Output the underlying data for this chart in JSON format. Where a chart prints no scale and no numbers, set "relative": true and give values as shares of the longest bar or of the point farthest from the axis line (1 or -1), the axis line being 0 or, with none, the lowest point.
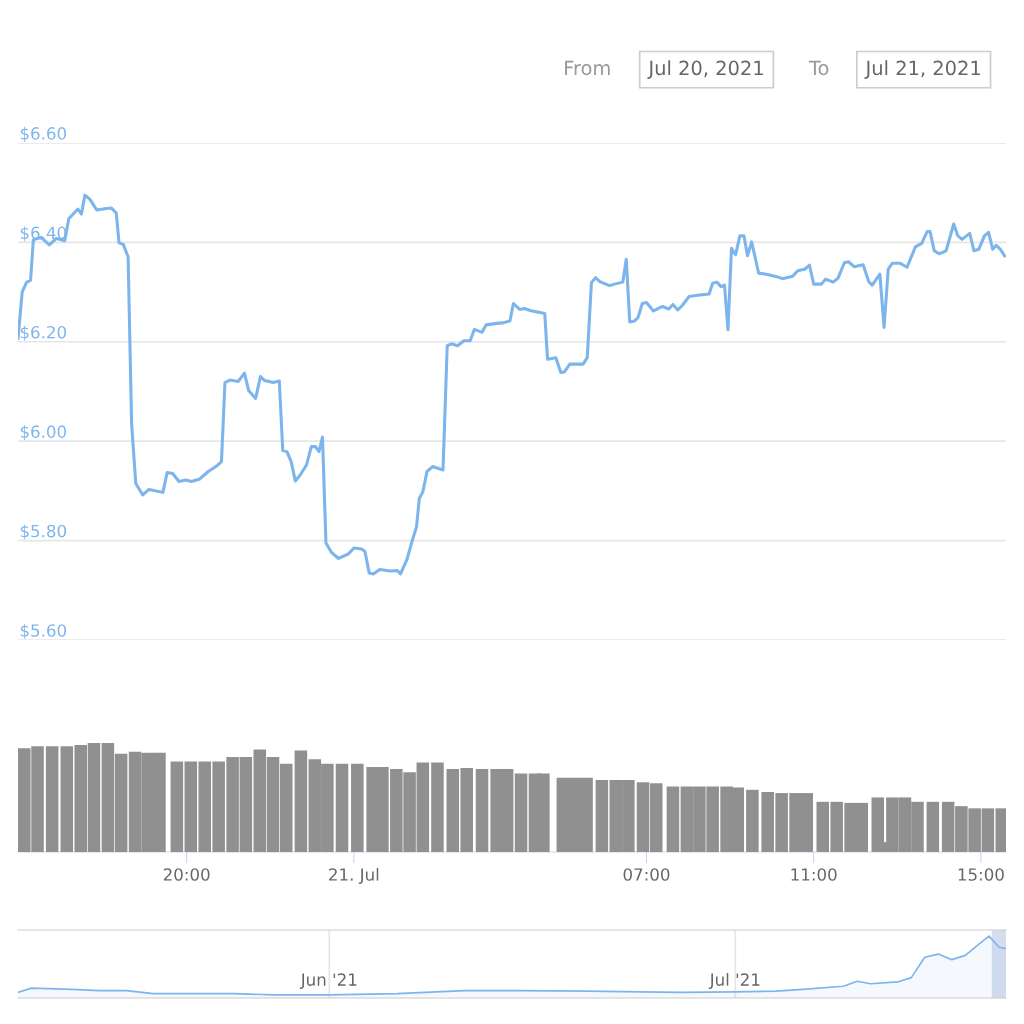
{
  "chart_data": [
    {
      "type": "line",
      "annotations": [
        "From",
        "Jul 20, 2021",
        "To",
        "Jul 21, 2021"
      ],
      "series": [
        {
          "color": "#7cb5ec",
          "x": [
            "2021-07-20T15:58",
            "2021-07-20T16:04",
            "2021-07-20T16:10",
            "2021-07-20T16:16",
            "2021-07-20T16:20",
            "2021-07-20T16:31",
            "2021-07-20T16:43",
            "2021-07-20T16:53",
            "2021-07-20T17:05",
            "2021-07-20T17:11",
            "2021-07-20T17:24",
            "2021-07-20T17:29",
            "2021-07-20T17:34",
            "2021-07-20T17:41",
            "2021-07-20T17:51",
            "2021-07-20T18:05",
            "2021-07-20T18:12",
            "2021-07-20T18:19",
            "2021-07-20T18:23",
            "2021-07-20T18:29",
            "2021-07-20T18:36",
            "2021-07-20T18:41",
            "2021-07-20T18:47",
            "2021-07-20T18:57",
            "2021-07-20T19:06",
            "2021-07-20T19:26",
            "2021-07-20T19:32",
            "2021-07-20T19:40",
            "2021-07-20T19:49",
            "2021-07-20T19:59",
            "2021-07-20T20:07",
            "2021-07-20T20:19",
            "2021-07-20T20:31",
            "2021-07-20T20:43",
            "2021-07-20T20:50",
            "2021-07-20T20:55",
            "2021-07-20T21:02",
            "2021-07-20T21:14",
            "2021-07-20T21:23",
            "2021-07-20T21:29",
            "2021-07-20T21:39",
            "2021-07-20T21:46",
            "2021-07-20T21:52",
            "2021-07-20T22:04",
            "2021-07-20T22:13",
            "2021-07-20T22:18",
            "2021-07-20T22:24",
            "2021-07-20T22:30",
            "2021-07-20T22:36",
            "2021-07-20T22:43",
            "2021-07-20T22:52",
            "2021-07-20T22:59",
            "2021-07-20T23:05",
            "2021-07-20T23:10",
            "2021-07-20T23:15",
            "2021-07-20T23:20",
            "2021-07-20T23:28",
            "2021-07-20T23:38",
            "2021-07-20T23:52",
            "2021-07-21T00:00",
            "2021-07-21T00:11",
            "2021-07-21T00:16",
            "2021-07-21T00:22",
            "2021-07-21T00:28",
            "2021-07-21T00:37",
            "2021-07-21T00:52",
            "2021-07-21T01:02",
            "2021-07-21T01:07",
            "2021-07-21T01:16",
            "2021-07-21T01:24",
            "2021-07-21T01:30",
            "2021-07-21T01:34",
            "2021-07-21T01:39",
            "2021-07-21T01:45",
            "2021-07-21T01:53",
            "2021-07-21T02:08",
            "2021-07-21T02:14",
            "2021-07-21T02:20",
            "2021-07-21T02:29",
            "2021-07-21T02:38",
            "2021-07-21T02:47",
            "2021-07-21T02:53",
            "2021-07-21T03:04",
            "2021-07-21T03:10",
            "2021-07-21T03:25",
            "2021-07-21T03:34",
            "2021-07-21T03:44",
            "2021-07-21T03:49",
            "2021-07-21T03:58",
            "2021-07-21T04:05",
            "2021-07-21T04:13",
            "2021-07-21T04:34",
            "2021-07-21T04:38",
            "2021-07-21T04:50",
            "2021-07-21T04:57",
            "2021-07-21T05:02",
            "2021-07-21T05:10",
            "2021-07-21T05:29",
            "2021-07-21T05:35",
            "2021-07-21T05:41",
            "2021-07-21T05:47",
            "2021-07-21T05:53",
            "2021-07-21T06:07",
            "2021-07-21T06:14",
            "2021-07-21T06:26",
            "2021-07-21T06:31",
            "2021-07-21T06:36",
            "2021-07-21T06:43",
            "2021-07-21T06:48",
            "2021-07-21T06:54",
            "2021-07-21T07:00",
            "2021-07-21T07:10",
            "2021-07-21T07:23",
            "2021-07-21T07:32",
            "2021-07-21T07:38",
            "2021-07-21T07:45",
            "2021-07-21T07:52",
            "2021-07-21T08:01",
            "2021-07-21T08:16",
            "2021-07-21T08:30",
            "2021-07-21T08:35",
            "2021-07-21T08:41",
            "2021-07-21T08:47",
            "2021-07-21T08:52",
            "2021-07-21T08:57",
            "2021-07-21T09:02",
            "2021-07-21T09:08",
            "2021-07-21T09:14",
            "2021-07-21T09:20",
            "2021-07-21T09:25",
            "2021-07-21T09:31",
            "2021-07-21T09:41",
            "2021-07-21T09:52",
            "2021-07-21T10:07",
            "2021-07-21T10:15",
            "2021-07-21T10:30",
            "2021-07-21T10:37",
            "2021-07-21T10:47",
            "2021-07-21T10:54",
            "2021-07-21T11:00",
            "2021-07-21T11:11",
            "2021-07-21T11:17",
            "2021-07-21T11:28",
            "2021-07-21T11:35",
            "2021-07-21T11:44",
            "2021-07-21T11:50",
            "2021-07-21T11:58",
            "2021-07-21T12:11",
            "2021-07-21T12:19",
            "2021-07-21T12:24",
            "2021-07-21T12:35",
            "2021-07-21T12:41",
            "2021-07-21T12:47",
            "2021-07-21T12:53",
            "2021-07-21T13:04",
            "2021-07-21T13:14",
            "2021-07-21T13:26",
            "2021-07-21T13:35",
            "2021-07-21T13:43",
            "2021-07-21T13:47",
            "2021-07-21T13:53",
            "2021-07-21T14:00",
            "2021-07-21T14:10",
            "2021-07-21T14:21",
            "2021-07-21T14:27",
            "2021-07-21T14:33",
            "2021-07-21T14:44",
            "2021-07-21T14:50",
            "2021-07-21T14:57",
            "2021-07-21T15:05",
            "2021-07-21T15:11",
            "2021-07-21T15:17",
            "2021-07-21T15:22",
            "2021-07-21T15:28",
            "2021-07-21T15:34"
          ],
          "values": [
            6.207,
            6.3,
            6.319,
            6.324,
            6.405,
            6.41,
            6.395,
            6.408,
            6.403,
            6.448,
            6.467,
            6.457,
            6.495,
            6.487,
            6.465,
            6.468,
            6.469,
            6.459,
            6.399,
            6.396,
            6.371,
            6.036,
            5.915,
            5.892,
            5.903,
            5.897,
            5.937,
            5.935,
            5.919,
            5.922,
            5.919,
            5.924,
            5.939,
            5.95,
            5.959,
            6.118,
            6.123,
            6.12,
            6.137,
            6.102,
            6.086,
            6.13,
            6.122,
            6.118,
            6.121,
            5.981,
            5.979,
            5.959,
            5.92,
            5.932,
            5.952,
            5.989,
            5.989,
            5.979,
            6.008,
            5.795,
            5.776,
            5.764,
            5.773,
            5.785,
            5.783,
            5.778,
            5.735,
            5.733,
            5.742,
            5.739,
            5.74,
            5.733,
            5.761,
            5.801,
            5.828,
            5.885,
            5.898,
            5.939,
            5.949,
            5.942,
            6.192,
            6.196,
            6.192,
            6.202,
            6.202,
            6.225,
            6.219,
            6.234,
            6.237,
            6.238,
            6.242,
            6.277,
            6.265,
            6.267,
            6.263,
            6.257,
            6.165,
            6.168,
            6.138,
            6.139,
            6.155,
            6.155,
            6.168,
            6.319,
            6.329,
            6.321,
            6.313,
            6.316,
            6.32,
            6.366,
            6.24,
            6.242,
            6.249,
            6.277,
            6.279,
            6.262,
            6.271,
            6.266,
            6.275,
            6.264,
            6.274,
            6.291,
            6.294,
            6.296,
            6.318,
            6.32,
            6.311,
            6.314,
            6.224,
            6.388,
            6.375,
            6.413,
            6.413,
            6.373,
            6.401,
            6.338,
            6.336,
            6.331,
            6.327,
            6.332,
            6.343,
            6.346,
            6.354,
            6.316,
            6.316,
            6.326,
            6.32,
            6.328,
            6.359,
            6.361,
            6.351,
            6.355,
            6.321,
            6.314,
            6.336,
            6.229,
            6.346,
            6.358,
            6.358,
            6.35,
            6.391,
            6.398,
            6.422,
            6.422,
            6.383,
            6.377,
            6.383,
            6.437,
            6.413,
            6.406,
            6.418,
            6.383,
            6.386,
            6.413,
            6.42,
            6.386,
            6.394,
            6.386,
            6.373
          ]
        }
      ],
      "xlim": [
        "2021-07-20T15:58",
        "2021-07-21T15:36"
      ],
      "ylim": [
        5.6,
        6.6
      ],
      "yticks": [
        {
          "value": 5.6,
          "label": "$5.60"
        },
        {
          "value": 5.8,
          "label": "$5.80"
        },
        {
          "value": 6.0,
          "label": "$6.00"
        },
        {
          "value": 6.2,
          "label": "$6.20"
        },
        {
          "value": 6.4,
          "label": "$6.40"
        },
        {
          "value": 6.6,
          "label": "$6.60"
        }
      ],
      "tick_labels": "y",
      "grid": "y",
      "line_style": "solid"
    },
    {
      "type": "bar",
      "relative": true,
      "color": "#909090",
      "x": [
        "2021-07-20T16:07",
        "2021-07-20T16:26",
        "2021-07-20T16:47",
        "2021-07-20T17:08",
        "2021-07-20T17:28",
        "2021-07-20T17:47",
        "2021-07-20T18:07",
        "2021-07-20T18:26",
        "2021-07-20T18:46",
        "2021-07-20T19:04",
        "2021-07-20T19:21",
        "2021-07-20T19:46",
        "2021-07-20T20:06",
        "2021-07-20T20:26",
        "2021-07-20T20:46",
        "2021-07-20T21:06",
        "2021-07-20T21:25",
        "2021-07-20T21:45",
        "2021-07-20T22:04",
        "2021-07-20T22:23",
        "2021-07-20T22:44",
        "2021-07-20T23:04",
        "2021-07-20T23:22",
        "2021-07-20T23:43",
        "2021-07-21T00:05",
        "2021-07-21T00:27",
        "2021-07-21T00:41",
        "2021-07-21T01:01",
        "2021-07-21T01:20",
        "2021-07-21T01:39",
        "2021-07-21T02:00",
        "2021-07-21T02:22",
        "2021-07-21T02:42",
        "2021-07-21T03:04",
        "2021-07-21T03:25",
        "2021-07-21T03:40",
        "2021-07-21T04:00",
        "2021-07-21T04:20",
        "2021-07-21T04:32",
        "2021-07-21T05:00",
        "2021-07-21T05:17",
        "2021-07-21T05:34",
        "2021-07-21T05:56",
        "2021-07-21T06:16",
        "2021-07-21T06:34",
        "2021-07-21T06:55",
        "2021-07-21T07:14",
        "2021-07-21T07:38",
        "2021-07-21T07:58",
        "2021-07-21T08:16",
        "2021-07-21T08:35",
        "2021-07-21T08:55",
        "2021-07-21T09:11",
        "2021-07-21T09:32",
        "2021-07-21T09:54",
        "2021-07-21T10:14",
        "2021-07-21T10:34",
        "2021-07-21T10:50",
        "2021-07-21T11:13",
        "2021-07-21T11:33",
        "2021-07-21T11:53",
        "2021-07-21T12:09",
        "2021-07-21T12:32",
        "2021-07-21T12:45",
        "2021-07-21T12:53",
        "2021-07-21T13:11",
        "2021-07-21T13:29",
        "2021-07-21T13:51",
        "2021-07-21T14:13",
        "2021-07-21T14:32",
        "2021-07-21T14:51",
        "2021-07-21T15:10",
        "2021-07-21T15:30"
      ],
      "values": [
        0.95,
        0.97,
        0.97,
        0.97,
        0.98,
        1.0,
        1.0,
        0.9,
        0.92,
        0.91,
        0.91,
        0.83,
        0.83,
        0.83,
        0.83,
        0.87,
        0.87,
        0.94,
        0.87,
        0.81,
        0.93,
        0.85,
        0.81,
        0.81,
        0.81,
        0.78,
        0.78,
        0.76,
        0.73,
        0.82,
        0.82,
        0.76,
        0.77,
        0.76,
        0.76,
        0.76,
        0.72,
        0.72,
        0.72,
        0.68,
        0.68,
        0.68,
        0.66,
        0.66,
        0.66,
        0.64,
        0.63,
        0.6,
        0.6,
        0.6,
        0.6,
        0.6,
        0.59,
        0.57,
        0.55,
        0.54,
        0.54,
        0.54,
        0.46,
        0.46,
        0.45,
        0.45,
        0.5,
        0.09,
        0.5,
        0.5,
        0.46,
        0.46,
        0.46,
        0.42,
        0.4,
        0.4,
        0.4
      ],
      "xlim": [
        "2021-07-20T15:58",
        "2021-07-21T15:36"
      ],
      "xticks": [
        {
          "value": "2021-07-20T20:00",
          "label": "20:00"
        },
        {
          "value": "2021-07-21T00:00",
          "label": "21. Jul"
        },
        {
          "value": "2021-07-21T07:00",
          "label": "07:00"
        },
        {
          "value": "2021-07-21T11:00",
          "label": "11:00"
        },
        {
          "value": "2021-07-21T15:00",
          "label": "15:00"
        }
      ],
      "tick_labels": "x"
    },
    {
      "type": "area",
      "relative": true,
      "color": "#7cb5ec",
      "x": [
        "2021-05-09",
        "2021-05-10",
        "2021-05-13",
        "2021-05-15",
        "2021-05-17",
        "2021-05-19",
        "2021-05-25",
        "2021-05-28",
        "2021-06-01",
        "2021-06-06",
        "2021-06-11",
        "2021-06-15",
        "2021-06-20",
        "2021-06-24",
        "2021-06-27",
        "2021-07-01",
        "2021-07-04",
        "2021-07-06",
        "2021-07-09",
        "2021-07-10",
        "2021-07-11",
        "2021-07-13",
        "2021-07-14",
        "2021-07-15",
        "2021-07-16",
        "2021-07-17",
        "2021-07-18",
        "2021-07-19",
        "2021-07-19T18:00",
        "2021-07-20T12:00",
        "2021-07-21"
      ],
      "values": [
        0.09,
        0.16,
        0.14,
        0.12,
        0.12,
        0.07,
        0.07,
        0.05,
        0.05,
        0.07,
        0.12,
        0.12,
        0.11,
        0.1,
        0.09,
        0.1,
        0.11,
        0.14,
        0.19,
        0.27,
        0.23,
        0.26,
        0.33,
        0.66,
        0.71,
        0.62,
        0.69,
        0.87,
        1.0,
        0.82,
        0.8
      ],
      "xlim": [
        "2021-05-09",
        "2021-07-21"
      ],
      "xticks": [
        {
          "value": "2021-06-01",
          "label": "Jun '21"
        },
        {
          "value": "2021-07-01",
          "label": "Jul '21"
        }
      ],
      "grid": "x",
      "tick_labels": "x",
      "bands": [
        {
          "axis": "x",
          "from": "2021-07-20",
          "to": "2021-07-21",
          "color": "#ccd6eb"
        }
      ]
    }
  ]
}
